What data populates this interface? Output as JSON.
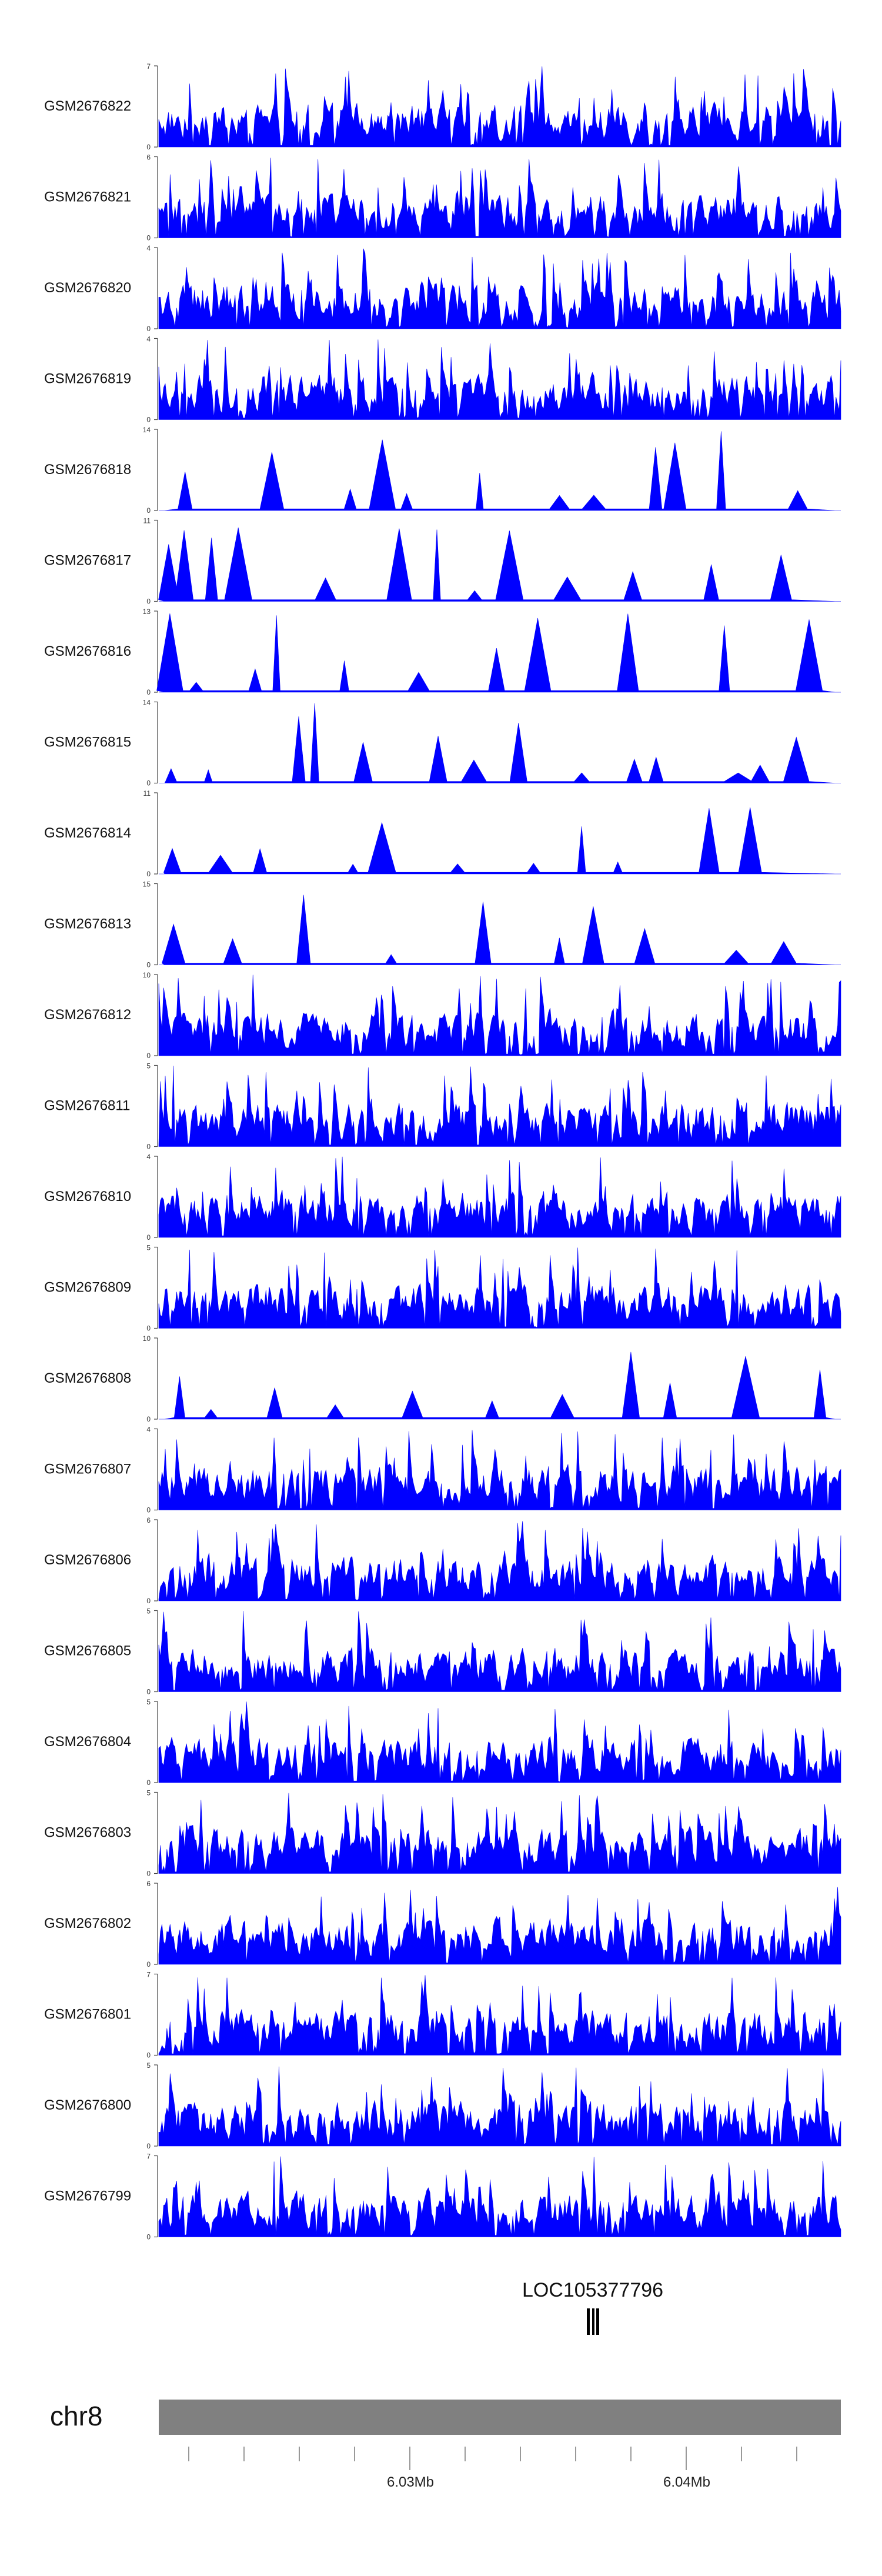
{
  "chart_data": {
    "type": "area",
    "title": "",
    "fill_color": "#0000ff",
    "tracks": [
      {
        "name": "GSM2676822",
        "ymax": 7
      },
      {
        "name": "GSM2676821",
        "ymax": 6
      },
      {
        "name": "GSM2676820",
        "ymax": 4
      },
      {
        "name": "GSM2676819",
        "ymax": 4
      },
      {
        "name": "GSM2676818",
        "ymax": 14
      },
      {
        "name": "GSM2676817",
        "ymax": 11
      },
      {
        "name": "GSM2676816",
        "ymax": 13
      },
      {
        "name": "GSM2676815",
        "ymax": 14
      },
      {
        "name": "GSM2676814",
        "ymax": 11
      },
      {
        "name": "GSM2676813",
        "ymax": 15
      },
      {
        "name": "GSM2676812",
        "ymax": 10
      },
      {
        "name": "GSM2676811",
        "ymax": 5
      },
      {
        "name": "GSM2676810",
        "ymax": 4
      },
      {
        "name": "GSM2676809",
        "ymax": 5
      },
      {
        "name": "GSM2676808",
        "ymax": 10
      },
      {
        "name": "GSM2676807",
        "ymax": 4
      },
      {
        "name": "GSM2676806",
        "ymax": 6
      },
      {
        "name": "GSM2676805",
        "ymax": 5
      },
      {
        "name": "GSM2676804",
        "ymax": 5
      },
      {
        "name": "GSM2676803",
        "ymax": 5
      },
      {
        "name": "GSM2676802",
        "ymax": 6
      },
      {
        "name": "GSM2676801",
        "ymax": 7
      },
      {
        "name": "GSM2676800",
        "ymax": 5
      },
      {
        "name": "GSM2676799",
        "ymax": 7
      }
    ],
    "ymin_label": "0",
    "gene": {
      "name": "LOC105377796"
    },
    "chromosome": {
      "name": "chr8",
      "tick_labels": [
        "6.03Mb",
        "6.04Mb"
      ],
      "bar_color": "#808080"
    }
  }
}
